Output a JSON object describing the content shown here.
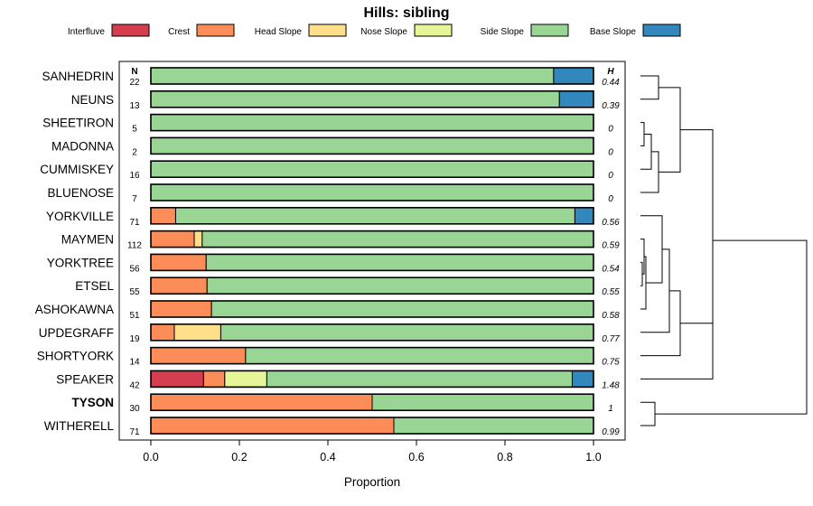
{
  "chart_data": {
    "type": "bar",
    "orientation": "horizontal-stacked",
    "title": "Hills: sibling",
    "xlabel": "Proportion",
    "xlim": [
      0,
      1
    ],
    "xticks": [
      "0.0",
      "0.2",
      "0.4",
      "0.6",
      "0.8",
      "1.0"
    ],
    "xtick_values": [
      0,
      0.2,
      0.4,
      0.6,
      0.8,
      1.0
    ],
    "n_header": "N",
    "h_header": "H",
    "legend_position": "top",
    "series": [
      {
        "name": "Interfluve",
        "color": "#d53e4f"
      },
      {
        "name": "Crest",
        "color": "#fc8d59"
      },
      {
        "name": "Head Slope",
        "color": "#fee08b"
      },
      {
        "name": "Nose Slope",
        "color": "#e6f598"
      },
      {
        "name": "Side Slope",
        "color": "#99d594"
      },
      {
        "name": "Base Slope",
        "color": "#3288bd"
      }
    ],
    "rows": [
      {
        "name": "SANHEDRIN",
        "n": "22",
        "h": "0.44",
        "bold": false,
        "values": [
          0,
          0,
          0,
          0,
          0.91,
          0.09
        ]
      },
      {
        "name": "NEUNS",
        "n": "13",
        "h": "0.39",
        "bold": false,
        "values": [
          0,
          0,
          0,
          0,
          0.923,
          0.077
        ]
      },
      {
        "name": "SHEETIRON",
        "n": "5",
        "h": "0",
        "bold": false,
        "values": [
          0,
          0,
          0,
          0,
          1.0,
          0
        ]
      },
      {
        "name": "MADONNA",
        "n": "2",
        "h": "0",
        "bold": false,
        "values": [
          0,
          0,
          0,
          0,
          1.0,
          0
        ]
      },
      {
        "name": "CUMMISKEY",
        "n": "16",
        "h": "0",
        "bold": false,
        "values": [
          0,
          0,
          0,
          0,
          1.0,
          0
        ]
      },
      {
        "name": "BLUENOSE",
        "n": "7",
        "h": "0",
        "bold": false,
        "values": [
          0,
          0,
          0,
          0,
          1.0,
          0
        ]
      },
      {
        "name": "YORKVILLE",
        "n": "71",
        "h": "0.56",
        "bold": false,
        "values": [
          0,
          0.056,
          0,
          0,
          0.902,
          0.042
        ]
      },
      {
        "name": "MAYMEN",
        "n": "112",
        "h": "0.59",
        "bold": false,
        "values": [
          0,
          0.098,
          0.018,
          0,
          0.884,
          0
        ]
      },
      {
        "name": "YORKTREE",
        "n": "56",
        "h": "0.54",
        "bold": false,
        "values": [
          0,
          0.125,
          0,
          0,
          0.875,
          0
        ]
      },
      {
        "name": "ETSEL",
        "n": "55",
        "h": "0.55",
        "bold": false,
        "values": [
          0,
          0.127,
          0,
          0,
          0.873,
          0
        ]
      },
      {
        "name": "ASHOKAWNA",
        "n": "51",
        "h": "0.58",
        "bold": false,
        "values": [
          0,
          0.137,
          0,
          0,
          0.863,
          0
        ]
      },
      {
        "name": "UPDEGRAFF",
        "n": "19",
        "h": "0.77",
        "bold": false,
        "values": [
          0,
          0.053,
          0.105,
          0,
          0.842,
          0
        ]
      },
      {
        "name": "SHORTYORK",
        "n": "14",
        "h": "0.75",
        "bold": false,
        "values": [
          0,
          0.214,
          0,
          0,
          0.786,
          0
        ]
      },
      {
        "name": "SPEAKER",
        "n": "42",
        "h": "1.48",
        "bold": false,
        "values": [
          0.119,
          0.048,
          0,
          0.095,
          0.69,
          0.048
        ]
      },
      {
        "name": "TYSON",
        "n": "30",
        "h": "1",
        "bold": true,
        "values": [
          0,
          0.5,
          0,
          0,
          0.5,
          0
        ]
      },
      {
        "name": "WITHERELL",
        "n": "71",
        "h": "0.99",
        "bold": false,
        "values": [
          0,
          0.549,
          0,
          0,
          0.451,
          0
        ]
      }
    ],
    "dendrogram": {
      "leaf_order": [
        "SANHEDRIN",
        "NEUNS",
        "SHEETIRON",
        "MADONNA",
        "CUMMISKEY",
        "BLUENOSE",
        "YORKVILLE",
        "MAYMEN",
        "YORKTREE",
        "ETSEL",
        "ASHOKAWNA",
        "UPDEGRAFF",
        "SHORTYORK",
        "SPEAKER",
        "TYSON",
        "WITHERELL"
      ],
      "merges": [
        {
          "a": 0,
          "b": 1,
          "height": 0.05
        },
        {
          "a": 2,
          "b": 3,
          "height": 0.01
        },
        {
          "a": "m1",
          "b": 4,
          "height": 0.03
        },
        {
          "a": "m2",
          "b": 5,
          "height": 0.05
        },
        {
          "a": 8,
          "b": 9,
          "height": 0.005
        },
        {
          "a": "m4",
          "b": 7,
          "height": 0.01
        },
        {
          "a": "m5",
          "b": 10,
          "height": 0.015
        },
        {
          "a": "m6",
          "b": 6,
          "height": 0.06
        },
        {
          "a": "m7",
          "b": 11,
          "height": 0.08
        },
        {
          "a": "m8",
          "b": 12,
          "height": 0.11
        },
        {
          "a": "m0",
          "b": "m3",
          "height": 0.11
        },
        {
          "a": "m9",
          "b": 13,
          "height": 0.2
        },
        {
          "a": 14,
          "b": 15,
          "height": 0.04
        },
        {
          "a": "m10",
          "b": "m11",
          "height": 0.2
        },
        {
          "a": "m13",
          "b": "m12",
          "height": 0.46
        }
      ]
    }
  }
}
